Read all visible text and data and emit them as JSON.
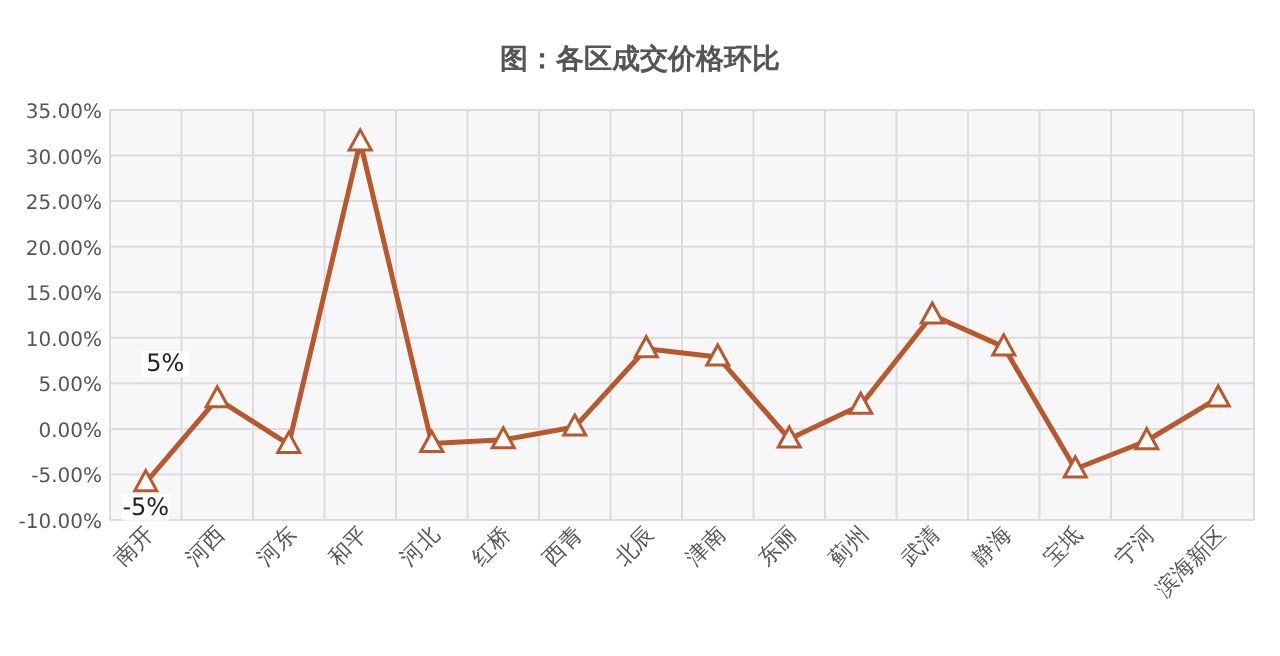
{
  "chart_data": {
    "type": "line",
    "title": "图：各区成交价格环比",
    "categories": [
      "南开",
      "河西",
      "河东",
      "和平",
      "河北",
      "红桥",
      "西青",
      "北辰",
      "津南",
      "东丽",
      "蓟州",
      "武清",
      "静海",
      "宝坻",
      "宁河",
      "滨海新区"
    ],
    "series": [
      {
        "color": "#b9582c",
        "values": [
          -5.9,
          3.3,
          -1.7,
          31.5,
          -1.6,
          -1.2,
          0.2,
          8.8,
          7.9,
          -1.1,
          2.6,
          12.5,
          9.0,
          -4.4,
          -1.3,
          3.4
        ]
      }
    ],
    "marker": "triangle",
    "grid": true,
    "ylim": [
      -10,
      35
    ],
    "yticks": [
      {
        "value": -10,
        "label": "-10.00%"
      },
      {
        "value": -5,
        "label": "-5.00%"
      },
      {
        "value": 0,
        "label": "0.00%"
      },
      {
        "value": 5,
        "label": "5.00%"
      },
      {
        "value": 10,
        "label": "10.00%"
      },
      {
        "value": 15,
        "label": "15.00%"
      },
      {
        "value": 20,
        "label": "20.00%"
      },
      {
        "value": 25,
        "label": "25.00%"
      },
      {
        "value": 30,
        "label": "30.00%"
      },
      {
        "value": 35,
        "label": "35.00%"
      }
    ],
    "annotations": [
      "5%",
      "-5%"
    ]
  }
}
